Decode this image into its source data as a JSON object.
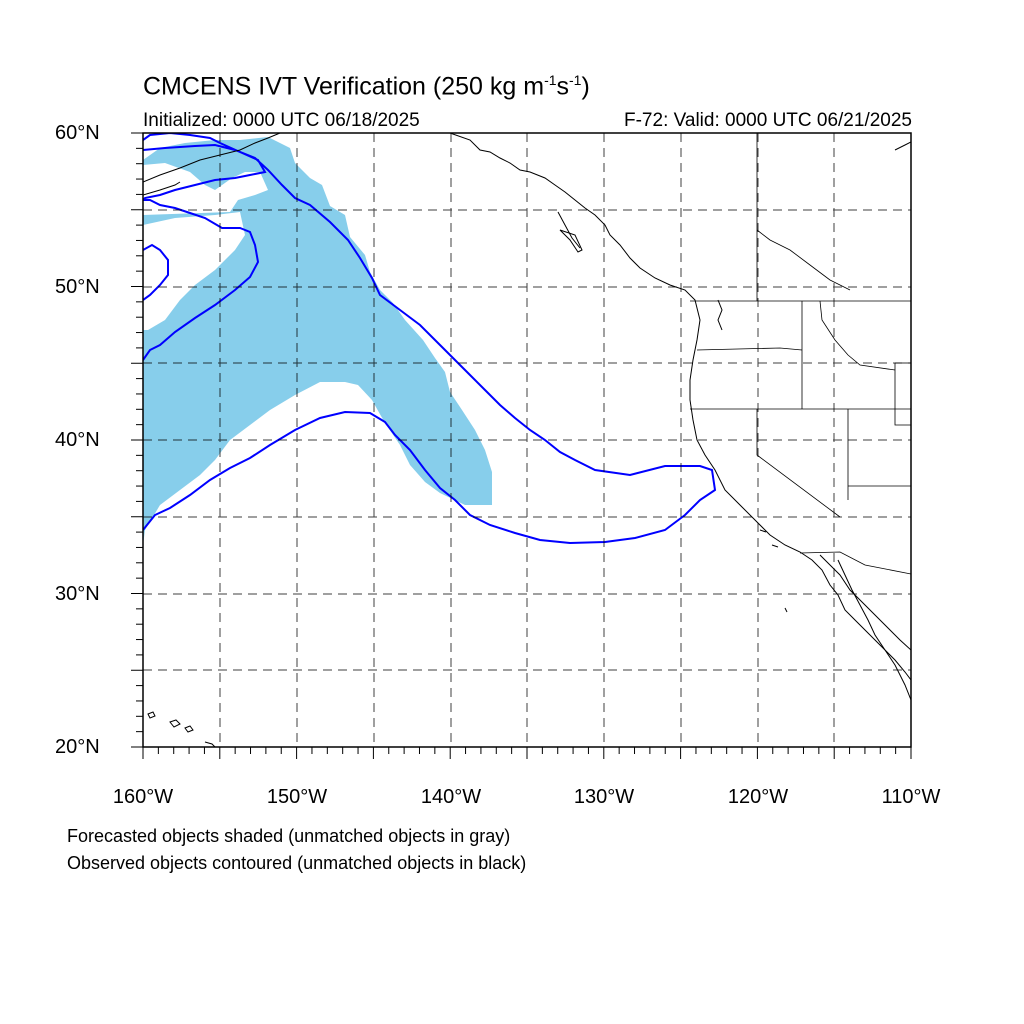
{
  "title": {
    "main": "CMCENS IVT Verification (250 kg m",
    "sup1": "-1",
    "mid": "s",
    "sup2": "-1",
    "end": ")"
  },
  "subtitle": {
    "left": "Initialized: 0000 UTC 06/18/2025",
    "right": "F-72: Valid: 0000 UTC 06/21/2025"
  },
  "map": {
    "lon_range": [
      -160,
      -110
    ],
    "lat_range": [
      20,
      60
    ],
    "lat_labels": [
      "60°N",
      "50°N",
      "40°N",
      "30°N",
      "20°N"
    ],
    "lon_labels": [
      "160°W",
      "150°W",
      "140°W",
      "130°W",
      "120°W",
      "110°W"
    ],
    "forecast_color": "#87ceeb",
    "observed_color": "#0000ff",
    "coast_color": "#000000",
    "grid_dash": true
  },
  "footer": {
    "line1": "Forecasted objects shaded (unmatched objects in gray)",
    "line2": "Observed objects contoured (unmatched objects in black)"
  }
}
